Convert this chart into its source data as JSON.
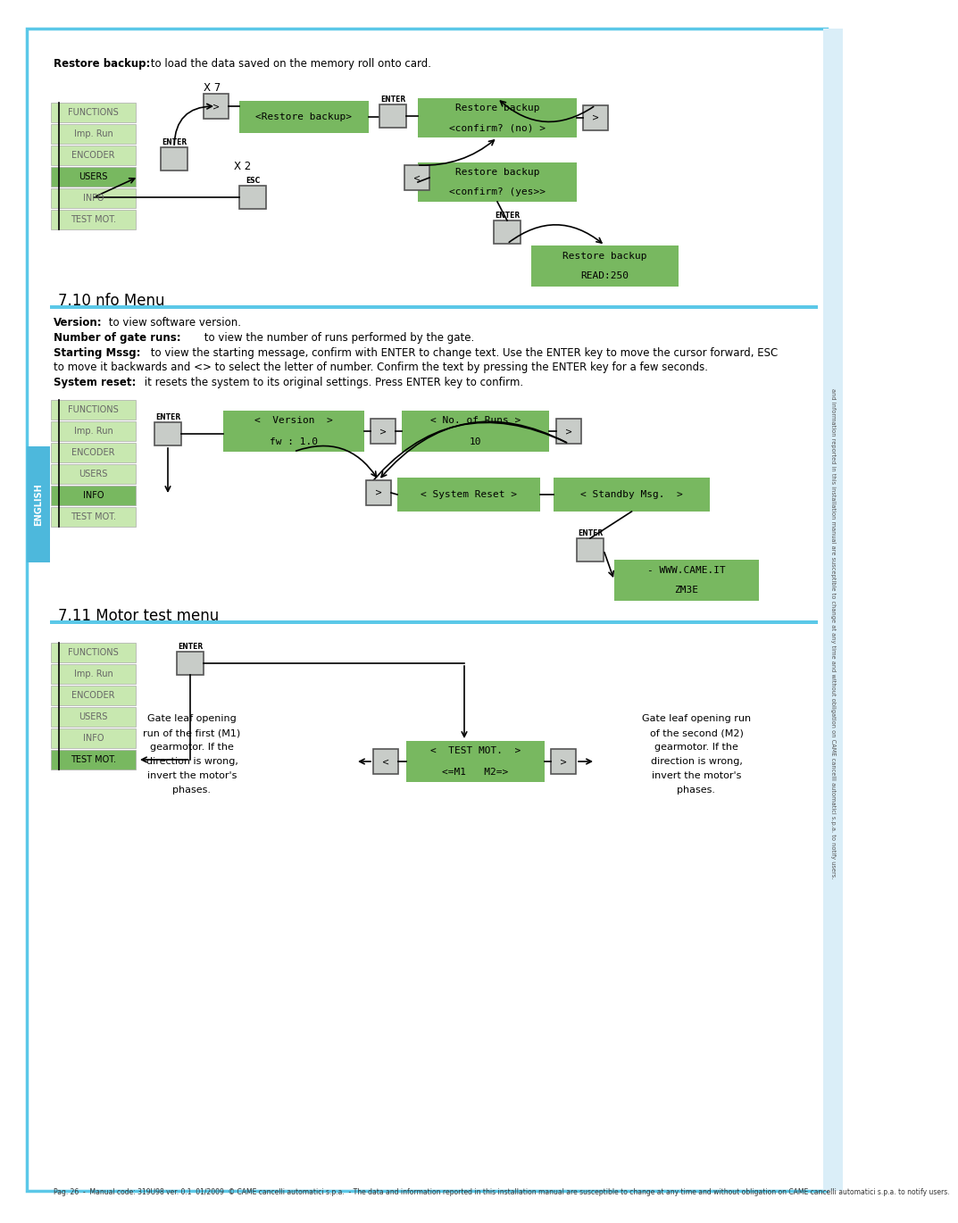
{
  "bg_color": "#ffffff",
  "border_color": "#5bc8e8",
  "english_tab_color": "#4db8dc",
  "green_bright": "#78b860",
  "green_light": "#c8e8b0",
  "green_mid": "#b0d898",
  "gray_btn": "#c8ccc8",
  "gray_btn_edge": "#888888",
  "menu_items": [
    "FUNCTIONS",
    "Imp. Run",
    "ENCODER",
    "USERS",
    "INFO",
    "TEST MOT."
  ],
  "section1_title": "7.10 nfo Menu",
  "section2_title": "7.11 Motor test menu",
  "footer_text": "Pag. 26  -  Manual code: 319U98 ver. 0.1  01/2009  © CAME cancelli automatici s.p.a.  - The data and information reported in this installation manual are susceptible to change at any time and without obligation on CAME cancelli automatici s.p.a. to notify users.",
  "sidebar_text": "and information reported in this installation manual are susceptible to change at any time and without obligation on CAME cancelli automatici s.p.a. to notify users."
}
